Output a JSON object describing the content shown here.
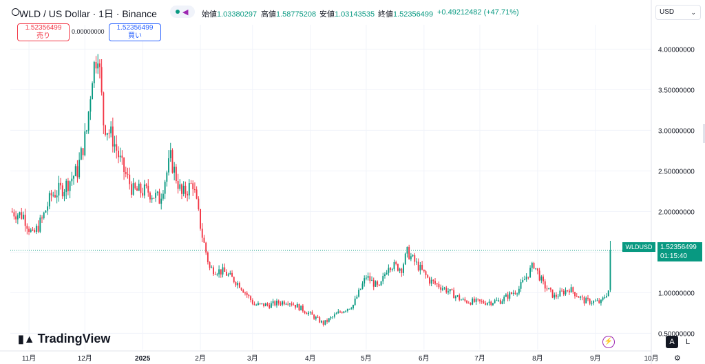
{
  "header": {
    "title": "WLD / US Dollar · 1日 · Binance",
    "ohlc": {
      "open_label": "始値",
      "open": "1.03380297",
      "high_label": "高値",
      "high": "1.58775208",
      "low_label": "安値",
      "low": "1.03143535",
      "close_label": "終値",
      "close": "1.52356499",
      "change": "+0.49212482 (+47.71%)"
    },
    "status_color": "#089981",
    "status_icon": "share-icon"
  },
  "trade": {
    "sell_price": "1.52356499",
    "sell_label": "売り",
    "buy_price": "1.52356499",
    "buy_label": "買い",
    "spread": "0.00000000"
  },
  "currency": {
    "value": "USD"
  },
  "price_axis": {
    "symbol": "WLDUSD",
    "last_price": "1.52356499",
    "countdown": "01:15:40",
    "tag_color": "#089981"
  },
  "scale_buttons": {
    "auto": "A",
    "log": "L"
  },
  "brand": {
    "name": "TradingView"
  },
  "colors": {
    "up": "#089981",
    "down": "#f23645"
  },
  "chart_data": {
    "type": "candlestick",
    "ylim": [
      0.3,
      4.3
    ],
    "y_ticks": [
      0.5,
      1.0,
      1.5,
      2.0,
      2.5,
      3.0,
      3.5,
      4.0
    ],
    "y_tick_labels": [
      "0.50000000",
      "1.00000000",
      "1.50000000",
      "2.00000000",
      "2.50000000",
      "3.00000000",
      "3.50000000",
      "4.00000000"
    ],
    "x_ticks": [
      "2024-11-01",
      "2024-12-01",
      "2025-01-01",
      "2025-02-01",
      "2025-03-01",
      "2025-04-01",
      "2025-05-01",
      "2025-06-01",
      "2025-07-01",
      "2025-08-01",
      "2025-09-01",
      "2025-10-01"
    ],
    "x_tick_labels": [
      "11月",
      "12月",
      "2025",
      "2月",
      "3月",
      "4月",
      "5月",
      "6月",
      "7月",
      "8月",
      "9月",
      "10月"
    ],
    "x_range": [
      "2024-10-22",
      "2025-10-01"
    ],
    "last_price": 1.52356499,
    "price_path": [
      [
        "2024-10-22",
        2.0
      ],
      [
        "2024-10-29",
        1.95
      ],
      [
        "2024-11-03",
        1.7
      ],
      [
        "2024-11-08",
        1.9
      ],
      [
        "2024-11-13",
        2.2
      ],
      [
        "2024-11-20",
        2.3
      ],
      [
        "2024-11-27",
        2.5
      ],
      [
        "2024-12-02",
        3.0
      ],
      [
        "2024-12-05",
        3.7
      ],
      [
        "2024-12-08",
        4.0
      ],
      [
        "2024-12-11",
        3.1
      ],
      [
        "2024-12-16",
        2.9
      ],
      [
        "2024-12-21",
        2.55
      ],
      [
        "2024-12-27",
        2.25
      ],
      [
        "2025-01-04",
        2.25
      ],
      [
        "2025-01-10",
        2.15
      ],
      [
        "2025-01-16",
        2.65
      ],
      [
        "2025-01-22",
        2.2
      ],
      [
        "2025-01-28",
        2.35
      ],
      [
        "2025-02-02",
        1.7
      ],
      [
        "2025-02-06",
        1.3
      ],
      [
        "2025-02-14",
        1.25
      ],
      [
        "2025-02-22",
        1.1
      ],
      [
        "2025-03-02",
        0.85
      ],
      [
        "2025-03-10",
        0.85
      ],
      [
        "2025-03-20",
        0.9
      ],
      [
        "2025-03-31",
        0.75
      ],
      [
        "2025-04-08",
        0.62
      ],
      [
        "2025-04-16",
        0.75
      ],
      [
        "2025-04-24",
        0.85
      ],
      [
        "2025-05-01",
        1.2
      ],
      [
        "2025-05-08",
        1.05
      ],
      [
        "2025-05-13",
        1.35
      ],
      [
        "2025-05-20",
        1.3
      ],
      [
        "2025-05-23",
        1.5
      ],
      [
        "2025-05-28",
        1.35
      ],
      [
        "2025-06-04",
        1.15
      ],
      [
        "2025-06-12",
        1.05
      ],
      [
        "2025-06-22",
        0.9
      ],
      [
        "2025-07-02",
        0.88
      ],
      [
        "2025-07-12",
        0.9
      ],
      [
        "2025-07-22",
        1.05
      ],
      [
        "2025-07-30",
        1.35
      ],
      [
        "2025-08-04",
        1.1
      ],
      [
        "2025-08-10",
        0.95
      ],
      [
        "2025-08-18",
        1.05
      ],
      [
        "2025-08-26",
        0.9
      ],
      [
        "2025-09-04",
        0.88
      ],
      [
        "2025-09-08",
        1.03
      ],
      [
        "2025-09-09",
        1.52
      ]
    ]
  }
}
